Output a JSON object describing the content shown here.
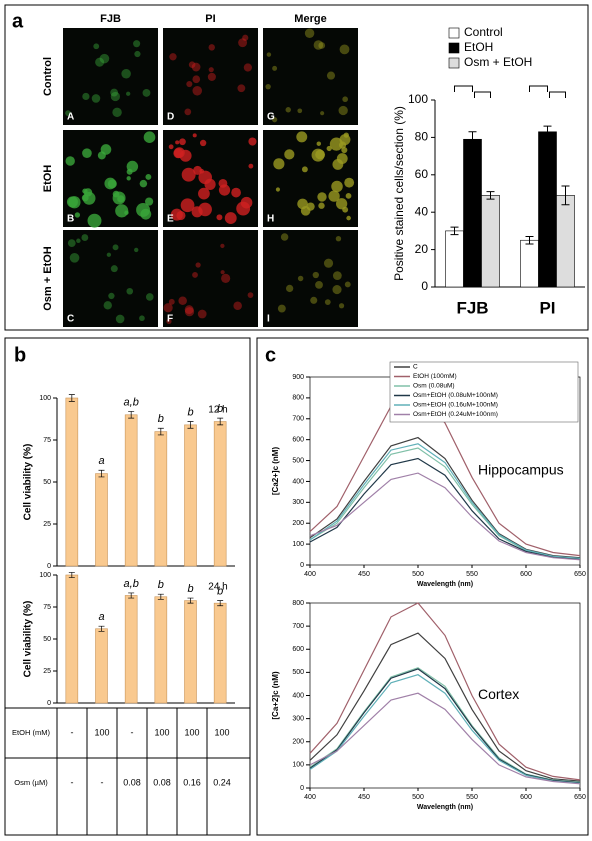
{
  "panel_labels": [
    "a",
    "b",
    "c"
  ],
  "micrographs": {
    "columns": [
      "FJB",
      "PI",
      "Merge"
    ],
    "rows": [
      "Control",
      "EtOH",
      "Osm + EtOH"
    ],
    "letters": [
      [
        "A",
        "D",
        "G"
      ],
      [
        "B",
        "E",
        "H"
      ],
      [
        "C",
        "F",
        "I"
      ]
    ]
  },
  "chart_data": [
    {
      "type": "bar",
      "ylabel": "Positive stained cells/section (%)",
      "categories": [
        "FJB",
        "PI"
      ],
      "series": [
        {
          "name": "Control",
          "color": "#ffffff",
          "values": [
            30,
            25
          ],
          "errors": [
            2,
            2
          ]
        },
        {
          "name": "EtOH",
          "color": "#000000",
          "values": [
            79,
            83
          ],
          "errors": [
            4,
            3
          ]
        },
        {
          "name": "Osm + EtOH",
          "color": "#dddddd",
          "values": [
            49,
            49
          ],
          "errors": [
            2,
            5
          ]
        }
      ],
      "ylim": [
        0,
        100
      ],
      "yticks": [
        0,
        20,
        40,
        60,
        80,
        100
      ]
    },
    {
      "type": "bar",
      "title": "12 h",
      "ylabel": "Cell viability (%)",
      "values": [
        100,
        55,
        90,
        80,
        84,
        86
      ],
      "errors": [
        2,
        2,
        2,
        2,
        2,
        2
      ],
      "annotations": [
        null,
        "a",
        "a,b",
        "b",
        "b",
        "b"
      ],
      "color": "#f9c98f",
      "ylim": [
        0,
        100
      ],
      "yticks": [
        0,
        25,
        50,
        75,
        100
      ]
    },
    {
      "type": "bar",
      "title": "24 h",
      "ylabel": "Cell viability (%)",
      "values": [
        100,
        58,
        84,
        83,
        80,
        78
      ],
      "errors": [
        2,
        2,
        2,
        2,
        2,
        2
      ],
      "annotations": [
        null,
        "a",
        "a,b",
        "b",
        "b",
        "b"
      ],
      "color": "#f9c98f",
      "ylim": [
        0,
        100
      ],
      "yticks": [
        0,
        25,
        50,
        75,
        100
      ]
    },
    {
      "type": "line",
      "annotation": "Hippocampus",
      "xlabel": "Wavelength (nm)",
      "ylabel": "[Ca2+]c (nM)",
      "legend": true,
      "x": [
        400,
        425,
        450,
        475,
        500,
        525,
        550,
        575,
        600,
        625,
        650
      ],
      "series": [
        {
          "name": "C",
          "color": "#404040",
          "values": [
            130,
            220,
            400,
            570,
            610,
            510,
            310,
            150,
            75,
            45,
            35
          ]
        },
        {
          "name": "EtOH (100mM)",
          "color": "#a0606a",
          "values": [
            160,
            280,
            520,
            760,
            820,
            680,
            420,
            200,
            100,
            60,
            45
          ]
        },
        {
          "name": "Osm (0.08uM)",
          "color": "#80c0a8",
          "values": [
            120,
            200,
            370,
            530,
            560,
            470,
            290,
            140,
            70,
            40,
            30
          ]
        },
        {
          "name": "Osm+EtOH (0.08uM+100nM)",
          "color": "#203848",
          "values": [
            110,
            180,
            340,
            480,
            510,
            430,
            260,
            125,
            65,
            38,
            28
          ]
        },
        {
          "name": "Osm+EtOH (0.16uM+100nM)",
          "color": "#60b0b8",
          "values": [
            120,
            210,
            385,
            550,
            580,
            490,
            300,
            145,
            72,
            42,
            32
          ]
        },
        {
          "name": "Osm+EtOH (0.24uM+100nm)",
          "color": "#a080a8",
          "values": [
            140,
            190,
            300,
            410,
            440,
            370,
            230,
            115,
            60,
            35,
            25
          ]
        }
      ],
      "xlim": [
        400,
        650
      ],
      "xticks": [
        400,
        450,
        500,
        550,
        600,
        650
      ],
      "ylim": [
        0,
        900
      ],
      "yticks": [
        0,
        100,
        200,
        300,
        400,
        500,
        600,
        700,
        800,
        900
      ]
    },
    {
      "type": "line",
      "annotation": "Cortex",
      "xlabel": "Wavelength (nm)",
      "ylabel": "[Ca+2]c (nM)",
      "legend": false,
      "x": [
        400,
        425,
        450,
        475,
        500,
        525,
        550,
        575,
        600,
        625,
        650
      ],
      "series": [
        {
          "color": "#404040",
          "values": [
            120,
            230,
            420,
            620,
            670,
            560,
            340,
            160,
            75,
            40,
            30
          ]
        },
        {
          "color": "#a0606a",
          "values": [
            150,
            280,
            510,
            740,
            800,
            660,
            400,
            190,
            90,
            50,
            35
          ]
        },
        {
          "color": "#80c0a8",
          "values": [
            90,
            170,
            330,
            480,
            520,
            440,
            270,
            130,
            60,
            35,
            25
          ]
        },
        {
          "color": "#203848",
          "values": [
            85,
            165,
            325,
            475,
            515,
            430,
            265,
            125,
            58,
            33,
            22
          ]
        },
        {
          "color": "#60b0b8",
          "values": [
            80,
            160,
            310,
            455,
            490,
            410,
            250,
            120,
            55,
            30,
            20
          ]
        },
        {
          "color": "#a080a8",
          "values": [
            100,
            160,
            270,
            380,
            410,
            340,
            210,
            100,
            48,
            28,
            18
          ]
        }
      ],
      "xlim": [
        400,
        650
      ],
      "xticks": [
        400,
        450,
        500,
        550,
        600,
        650
      ],
      "ylim": [
        0,
        800
      ],
      "yticks": [
        0,
        100,
        200,
        300,
        400,
        500,
        600,
        700,
        800
      ]
    }
  ],
  "table": {
    "rows": [
      [
        "EtOH (mM)",
        "-",
        "100",
        "-",
        "100",
        "100",
        "100"
      ],
      [
        "Osm (µM)",
        "-",
        "-",
        "0.08",
        "0.08",
        "0.16",
        "0.24"
      ]
    ]
  }
}
